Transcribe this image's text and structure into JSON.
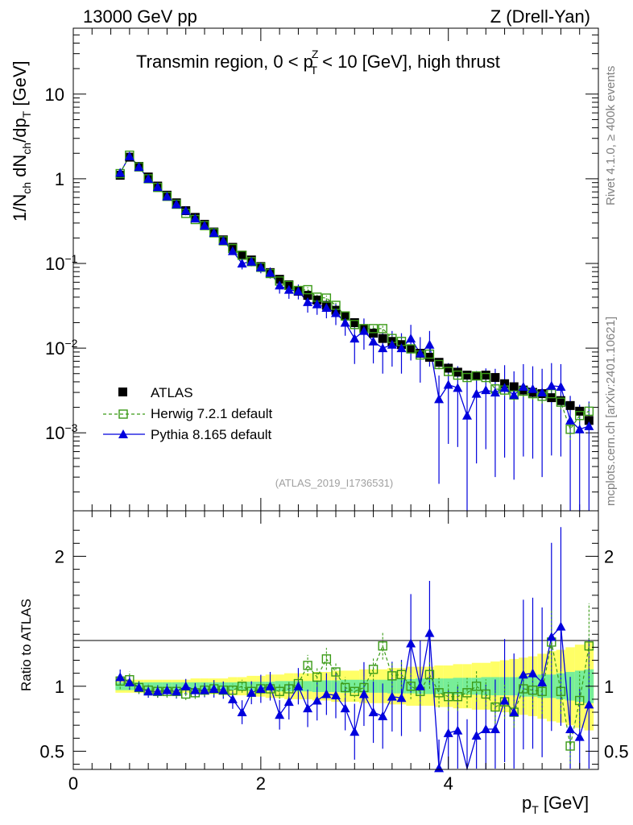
{
  "header": {
    "left": "13000 GeV pp",
    "right": "Z (Drell-Yan)"
  },
  "side": {
    "rivet": "Rivet 4.1.0, ≥ 400k events",
    "mcplots": "mcplots.cern.ch [arXiv:2401.10621]"
  },
  "colors": {
    "atlas": "#000000",
    "herwig": "#3a9a16",
    "pythia": "#0000dd",
    "band_outer": "#ffff66",
    "band_inner": "#77ee99"
  },
  "chart_data": [
    {
      "type": "scatter",
      "title": "Transmin region, 0 < p_T^Z < 10 [GeV], high thrust",
      "title_parts": {
        "t1": "Transmin region, 0 < p",
        "sup": "Z",
        "sub": "T",
        "t2": " < 10 [GeV], high thrust"
      },
      "ylabel": "1/N_ch dN_ch/dp_T [GeV]",
      "ylabel_parts": {
        "a": "1/N",
        "s1": "ch",
        "b": " dN",
        "s2": "ch",
        "c": "/dp",
        "s3": "T",
        "d": " [GeV]"
      },
      "yscale": "log",
      "ylim": [
        0.00012,
        60
      ],
      "xlim": [
        0,
        5.6
      ],
      "yticks": [
        {
          "v": 10,
          "base": "10",
          "exp": ""
        },
        {
          "v": 1,
          "base": "1",
          "exp": ""
        },
        {
          "v": 0.1,
          "base": "10",
          "exp": "−1"
        },
        {
          "v": 0.01,
          "base": "10",
          "exp": "−2"
        },
        {
          "v": 0.001,
          "base": "10",
          "exp": "−3"
        }
      ],
      "reference": "(ATLAS_2019_I1736531)",
      "legend": [
        {
          "name": "ATLAS",
          "style": "square-filled"
        },
        {
          "name": "Herwig 7.2.1 default",
          "style": "square-open-dashed"
        },
        {
          "name": "Pythia 8.165 default",
          "style": "triangle-line"
        }
      ],
      "x": [
        0.5,
        0.6,
        0.7,
        0.8,
        0.9,
        1.0,
        1.1,
        1.2,
        1.3,
        1.4,
        1.5,
        1.6,
        1.7,
        1.8,
        1.9,
        2.0,
        2.1,
        2.2,
        2.3,
        2.4,
        2.5,
        2.6,
        2.7,
        2.8,
        2.9,
        3.0,
        3.1,
        3.2,
        3.3,
        3.4,
        3.5,
        3.6,
        3.7,
        3.8,
        3.9,
        4.0,
        4.1,
        4.2,
        4.3,
        4.4,
        4.5,
        4.6,
        4.7,
        4.8,
        4.9,
        5.0,
        5.1,
        5.2,
        5.3,
        5.4,
        5.5
      ],
      "atlas": [
        1.1,
        1.8,
        1.4,
        1.05,
        0.82,
        0.64,
        0.52,
        0.42,
        0.35,
        0.29,
        0.235,
        0.19,
        0.155,
        0.125,
        0.11,
        0.092,
        0.078,
        0.065,
        0.056,
        0.047,
        0.042,
        0.037,
        0.032,
        0.028,
        0.024,
        0.02,
        0.017,
        0.015,
        0.013,
        0.012,
        0.011,
        0.0098,
        0.0087,
        0.0078,
        0.0068,
        0.0058,
        0.0052,
        0.0048,
        0.0047,
        0.0048,
        0.0045,
        0.0038,
        0.0035,
        0.0032,
        0.003,
        0.0029,
        0.0026,
        0.0024,
        0.0021,
        0.0018,
        0.0014
      ],
      "herwig": [
        1.15,
        1.9,
        1.38,
        1.0,
        0.79,
        0.62,
        0.5,
        0.39,
        0.33,
        0.28,
        0.23,
        0.185,
        0.15,
        0.125,
        0.105,
        0.09,
        0.076,
        0.062,
        0.055,
        0.048,
        0.049,
        0.04,
        0.039,
        0.032,
        0.024,
        0.019,
        0.017,
        0.017,
        0.017,
        0.013,
        0.012,
        0.0098,
        0.0083,
        0.0085,
        0.0064,
        0.0053,
        0.0048,
        0.0045,
        0.0047,
        0.0045,
        0.0033,
        0.0032,
        0.0028,
        0.0031,
        0.0029,
        0.0027,
        0.0029,
        0.0023,
        0.0011,
        0.0016,
        0.0018
      ],
      "herwig_err": [
        0.06,
        0.06,
        0.05,
        0.05,
        0.05,
        0.05,
        0.05,
        0.05,
        0.05,
        0.05,
        0.05,
        0.05,
        0.05,
        0.05,
        0.06,
        0.06,
        0.06,
        0.06,
        0.06,
        0.06,
        0.07,
        0.07,
        0.07,
        0.07,
        0.08,
        0.08,
        0.08,
        0.08,
        0.08,
        0.1,
        0.1,
        0.1,
        0.1,
        0.1,
        0.12,
        0.12,
        0.12,
        0.12,
        0.12,
        0.12,
        0.15,
        0.15,
        0.15,
        0.15,
        0.15,
        0.18,
        0.18,
        0.18,
        0.25,
        0.25,
        0.25
      ],
      "pythia": [
        1.18,
        1.85,
        1.38,
        1.0,
        0.8,
        0.62,
        0.5,
        0.42,
        0.34,
        0.28,
        0.23,
        0.185,
        0.14,
        0.1,
        0.105,
        0.09,
        0.078,
        0.055,
        0.049,
        0.047,
        0.035,
        0.033,
        0.03,
        0.026,
        0.02,
        0.013,
        0.016,
        0.012,
        0.01,
        0.011,
        0.01,
        0.013,
        0.0087,
        0.011,
        0.0025,
        0.0037,
        0.0034,
        0.0016,
        0.0029,
        0.0032,
        0.003,
        0.0034,
        0.0028,
        0.0035,
        0.0033,
        0.003,
        0.0036,
        0.0035,
        0.0014,
        0.0011,
        0.0012
      ],
      "pythia_err": [
        0.06,
        0.06,
        0.05,
        0.05,
        0.05,
        0.05,
        0.06,
        0.06,
        0.06,
        0.06,
        0.08,
        0.08,
        0.1,
        0.15,
        0.12,
        0.15,
        0.15,
        0.2,
        0.22,
        0.2,
        0.25,
        0.25,
        0.25,
        0.28,
        0.3,
        0.5,
        0.4,
        0.45,
        0.5,
        0.45,
        0.5,
        0.45,
        0.55,
        0.45,
        0.9,
        0.8,
        0.8,
        2.0,
        0.85,
        0.8,
        0.9,
        0.85,
        0.9,
        0.85,
        0.85,
        0.9,
        0.85,
        0.85,
        0.95,
        0.95,
        0.95
      ]
    },
    {
      "type": "scatter",
      "title": "",
      "xlabel": "p_T [GeV]",
      "xlabel_parts": {
        "a": "p",
        "sub": "T",
        "b": " [GeV]"
      },
      "ylabel": "Ratio to ATLAS",
      "ylim": [
        0.36,
        2.35
      ],
      "xlim": [
        0,
        5.6
      ],
      "yticks": [
        {
          "v": 0.5,
          "label": "0.5"
        },
        {
          "v": 1,
          "label": "1"
        },
        {
          "v": 2,
          "label": "2"
        }
      ],
      "xticks": [
        {
          "v": 0,
          "label": "0"
        },
        {
          "v": 2,
          "label": "2"
        },
        {
          "v": 4,
          "label": "4"
        }
      ],
      "band_inner": [
        0.03,
        0.03,
        0.03,
        0.03,
        0.03,
        0.03,
        0.03,
        0.03,
        0.03,
        0.03,
        0.03,
        0.03,
        0.03,
        0.035,
        0.035,
        0.035,
        0.035,
        0.04,
        0.04,
        0.04,
        0.04,
        0.045,
        0.045,
        0.045,
        0.05,
        0.05,
        0.05,
        0.05,
        0.05,
        0.055,
        0.055,
        0.055,
        0.06,
        0.06,
        0.06,
        0.06,
        0.065,
        0.065,
        0.065,
        0.07,
        0.07,
        0.07,
        0.07,
        0.08,
        0.08,
        0.09,
        0.09,
        0.1,
        0.11,
        0.12,
        0.13
      ],
      "band_outer": [
        0.05,
        0.05,
        0.05,
        0.05,
        0.05,
        0.05,
        0.05,
        0.05,
        0.06,
        0.06,
        0.06,
        0.06,
        0.07,
        0.07,
        0.08,
        0.08,
        0.09,
        0.09,
        0.1,
        0.1,
        0.1,
        0.11,
        0.11,
        0.12,
        0.12,
        0.12,
        0.13,
        0.13,
        0.13,
        0.14,
        0.14,
        0.15,
        0.15,
        0.15,
        0.16,
        0.16,
        0.17,
        0.17,
        0.18,
        0.18,
        0.19,
        0.2,
        0.21,
        0.22,
        0.23,
        0.25,
        0.27,
        0.28,
        0.3,
        0.32,
        0.34
      ],
      "herwig_ratio": [
        1.04,
        1.05,
        0.99,
        0.97,
        0.96,
        0.96,
        0.96,
        0.94,
        0.95,
        0.97,
        0.98,
        0.97,
        0.97,
        1.0,
        0.96,
        0.98,
        0.98,
        0.96,
        0.98,
        1.02,
        1.16,
        1.07,
        1.21,
        1.11,
        0.99,
        0.96,
        0.99,
        1.13,
        1.31,
        1.08,
        1.09,
        1.0,
        0.96,
        1.09,
        0.95,
        0.92,
        0.92,
        0.95,
        1.0,
        0.94,
        0.84,
        0.88,
        0.8,
        0.98,
        0.97,
        0.96,
        1.34,
        0.96,
        0.54,
        0.89,
        1.31
      ],
      "pythia_ratio": [
        1.07,
        1.03,
        0.99,
        0.96,
        0.96,
        0.97,
        0.96,
        1.0,
        0.97,
        0.97,
        0.98,
        0.97,
        0.9,
        0.8,
        0.95,
        0.98,
        1.0,
        0.78,
        0.88,
        1.0,
        0.83,
        0.89,
        0.94,
        0.93,
        0.83,
        0.65,
        0.94,
        0.8,
        0.77,
        0.92,
        0.91,
        1.33,
        1.0,
        1.41,
        0.37,
        0.64,
        0.66,
        0.33,
        0.62,
        0.67,
        0.67,
        0.89,
        0.8,
        1.09,
        1.1,
        1.03,
        1.38,
        1.46,
        0.67,
        0.61,
        0.86
      ]
    }
  ]
}
